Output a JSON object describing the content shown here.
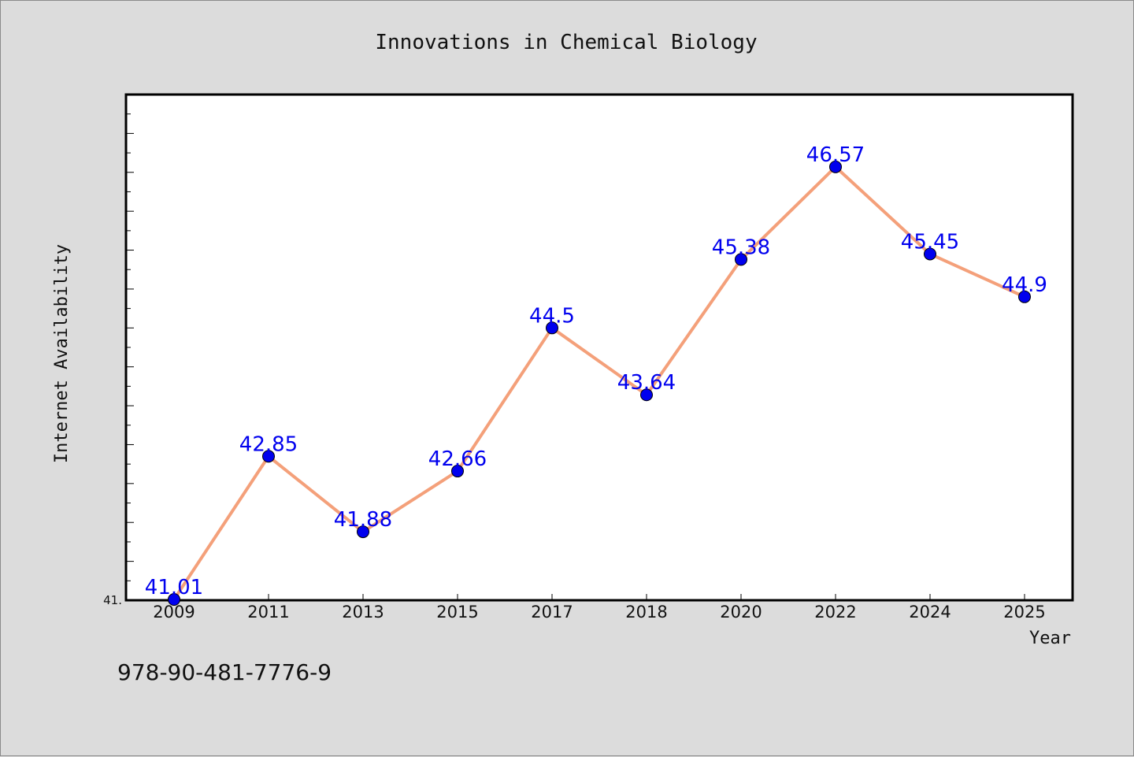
{
  "chart_data": {
    "type": "line",
    "title": "Innovations in Chemical Biology",
    "xlabel": "Year",
    "ylabel": "Internet Availability",
    "categories": [
      "2009",
      "2011",
      "2013",
      "2015",
      "2017",
      "2018",
      "2020",
      "2022",
      "2024",
      "2025"
    ],
    "series": [
      {
        "values": [
          41.01,
          42.85,
          41.88,
          42.66,
          44.5,
          43.64,
          45.38,
          46.57,
          45.45,
          44.9
        ],
        "data_labels": [
          "41.01",
          "42.85",
          "41.88",
          "42.66",
          "44.5",
          "43.64",
          "45.38",
          "46.57",
          "45.45",
          "44.9"
        ],
        "line_color": "#f4a07a",
        "marker_color": "#0000ee",
        "label_color": "#0000ee"
      }
    ],
    "ylim": [
      41.0,
      47.5
    ],
    "y_tick_label": "41.",
    "y_minor_step": 0.25,
    "grid": false,
    "legend": "none"
  },
  "annotation": {
    "text": "978-90-481-7776-9"
  },
  "colors": {
    "figure_background": "#dcdcdc",
    "plot_background": "#ffffff",
    "axis_color": "#000000"
  }
}
